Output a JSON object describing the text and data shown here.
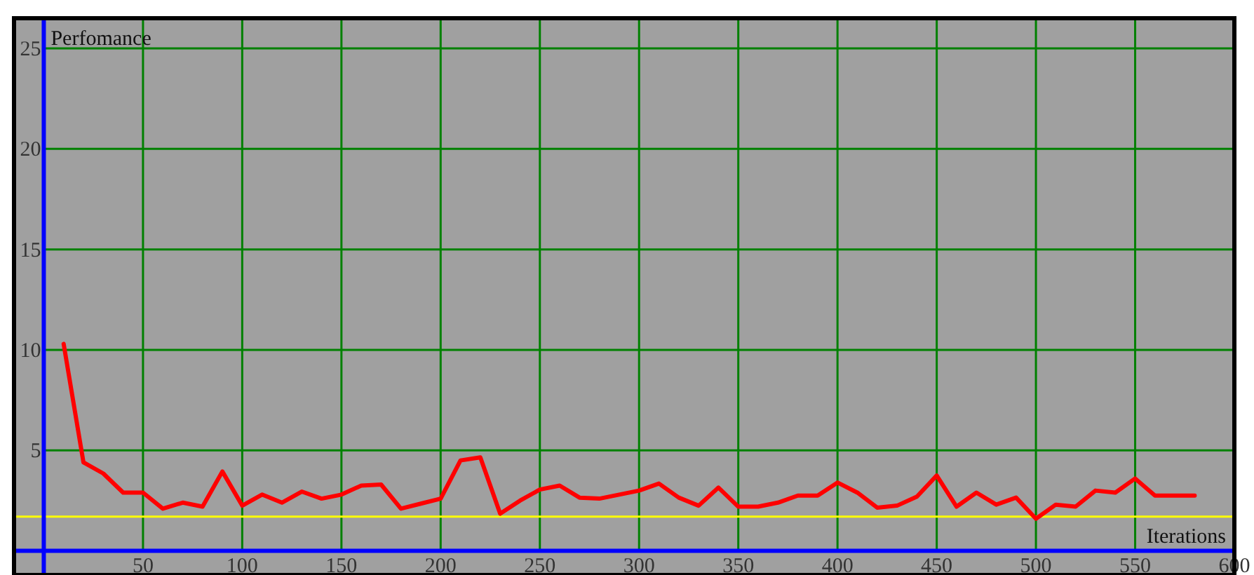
{
  "chart_data": {
    "type": "line",
    "xlabel": "Iterations",
    "ylabel": "Perfomance",
    "x": [
      10,
      20,
      30,
      40,
      50,
      60,
      70,
      80,
      90,
      100,
      110,
      120,
      130,
      140,
      150,
      160,
      170,
      180,
      190,
      200,
      210,
      220,
      230,
      240,
      250,
      260,
      270,
      280,
      290,
      300,
      310,
      320,
      330,
      340,
      350,
      360,
      370,
      380,
      390,
      400,
      410,
      420,
      430,
      440,
      450,
      460,
      470,
      480,
      490,
      500,
      510,
      520,
      530,
      540,
      550,
      560,
      570,
      580
    ],
    "series": [
      {
        "color": "#ff0000",
        "values": [
          10.3,
          4.4,
          3.85,
          2.9,
          2.9,
          2.1,
          2.4,
          2.2,
          3.95,
          2.25,
          2.8,
          2.4,
          2.95,
          2.6,
          2.8,
          3.25,
          3.3,
          2.1,
          2.35,
          2.6,
          4.5,
          4.65,
          1.85,
          2.5,
          3.05,
          3.25,
          2.65,
          2.6,
          2.8,
          3.0,
          3.35,
          2.65,
          2.25,
          3.15,
          2.2,
          2.2,
          2.4,
          2.75,
          2.75,
          3.4,
          2.9,
          2.15,
          2.25,
          2.7,
          3.75,
          2.2,
          2.9,
          2.3,
          2.65,
          1.6,
          2.3,
          2.2,
          3.0,
          2.9,
          3.6,
          2.75,
          2.75,
          2.75
        ]
      }
    ],
    "xlim": [
      -15,
      600
    ],
    "ylim": [
      -1.2,
      26.5
    ],
    "xticks": [
      50,
      100,
      150,
      200,
      250,
      300,
      350,
      400,
      450,
      500,
      550,
      600
    ],
    "yticks": [
      5,
      10,
      15,
      20,
      25
    ],
    "grid": true,
    "ref_lines": [
      {
        "axis": "y",
        "value": 1.7,
        "color": "#ffff00"
      },
      {
        "axis": "y",
        "value": 0,
        "color": "#0000ff"
      }
    ]
  }
}
